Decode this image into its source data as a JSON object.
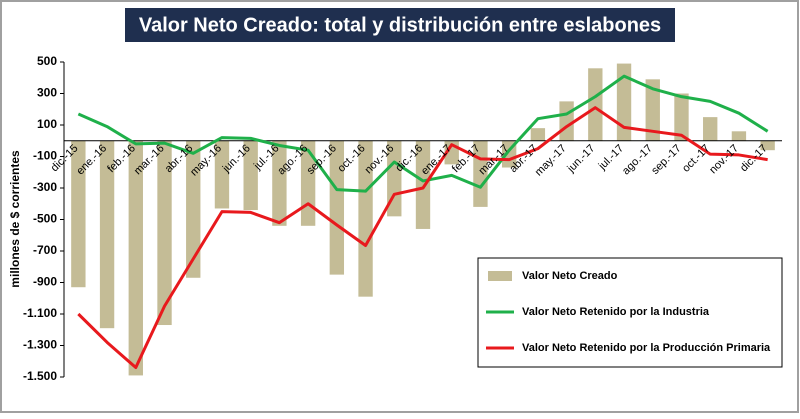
{
  "chart_data": {
    "type": "bar",
    "title": "Valor Neto Creado: total y distribución entre eslabones",
    "y_label": "millones de $ corrientes",
    "categories": [
      "dic.-15",
      "ene.-16",
      "feb.-16",
      "mar.-16",
      "abr.-16",
      "may.-16",
      "jun.-16",
      "jul.-16",
      "ago.-16",
      "sep.-16",
      "oct.-16",
      "nov.-16",
      "dic.-16",
      "ene.-17",
      "feb.-17",
      "mar.-17",
      "abr.-17",
      "may.-17",
      "jun.-17",
      "jul.-17",
      "ago.-17",
      "sep.-17",
      "oct.-17",
      "nov.-17",
      "dic.-17"
    ],
    "series": [
      {
        "name": "Valor Neto Creado",
        "type": "bar",
        "color": "#c4bc96",
        "values": [
          -930,
          -1190,
          -1490,
          -1170,
          -870,
          -430,
          -440,
          -540,
          -540,
          -850,
          -990,
          -480,
          -560,
          -150,
          -420,
          -170,
          80,
          250,
          460,
          490,
          390,
          300,
          150,
          60,
          -60
        ]
      },
      {
        "name": "Valor Neto Retenido por la Industria",
        "type": "line",
        "color": "#1fb04a",
        "values": [
          170,
          90,
          -20,
          -15,
          -80,
          20,
          15,
          -30,
          -60,
          -310,
          -320,
          -135,
          -255,
          -220,
          -295,
          -60,
          140,
          170,
          280,
          410,
          330,
          280,
          250,
          175,
          60
        ]
      },
      {
        "name": "Valor Neto Retenido por la Producción Primaria",
        "type": "line",
        "color": "#e8191d",
        "values": [
          -1100,
          -1280,
          -1440,
          -1050,
          -750,
          -450,
          -455,
          -520,
          -400,
          -535,
          -665,
          -340,
          -300,
          -25,
          -115,
          -120,
          -50,
          90,
          210,
          85,
          60,
          35,
          -85,
          -90,
          -120
        ]
      }
    ],
    "ylim": [
      -1500,
      500
    ],
    "yticks": [
      500,
      300,
      100,
      -100,
      -300,
      -500,
      -700,
      -900,
      {
        "value": -1100,
        "label": "-1.100"
      },
      {
        "value": -1300,
        "label": "-1.300"
      },
      {
        "value": -1500,
        "label": "-1.500"
      }
    ],
    "grid": false,
    "legend": "bottom-right"
  }
}
